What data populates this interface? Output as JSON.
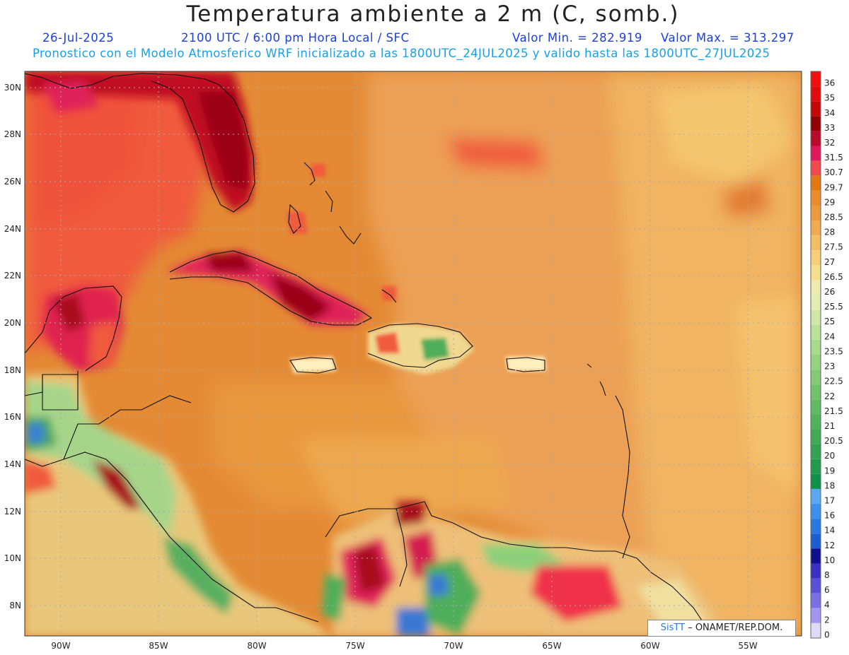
{
  "header": {
    "title": "Temperatura ambiente a 2 m (C, somb.)",
    "date": "26-Jul-2025",
    "time": "2100 UTC / 6:00 pm Hora Local / SFC",
    "min_value": "Valor Min. = 282.919",
    "max_value": "Valor Max. = 313.297",
    "forecast_note": "Pronostico con el Modelo Atmosferico WRF inicializado a las 1800UTC_24JUL2025 y valido hasta las  1800UTC_27JUL2025"
  },
  "map": {
    "lat_labels": [
      "30N",
      "28N",
      "26N",
      "24N",
      "22N",
      "20N",
      "18N",
      "16N",
      "14N",
      "12N",
      "10N",
      "8N"
    ],
    "lon_labels": [
      "90W",
      "85W",
      "80W",
      "75W",
      "70W",
      "65W",
      "60W",
      "55W"
    ],
    "colors": {
      "ocean_warm": "#e08a2c",
      "ocean_hot": "#f05a3a",
      "ocean_mild": "#eca455",
      "very_hot": "#a8101c",
      "cool_green": "#4fae5a",
      "cold_blue": "#3b7fd8"
    }
  },
  "colorbar": {
    "levels": [
      "36",
      "35",
      "34",
      "33",
      "32",
      "31.5",
      "30.7",
      "29.7",
      "29",
      "28.5",
      "28",
      "27.5",
      "27",
      "26.5",
      "26",
      "25.5",
      "25",
      "24",
      "23.5",
      "23",
      "22.5",
      "22",
      "21.5",
      "21",
      "20.5",
      "20",
      "19",
      "18",
      "17",
      "16",
      "14",
      "12",
      "10",
      "8",
      "6",
      "4",
      "2",
      "0"
    ],
    "colors": [
      "#f01010",
      "#e00c0c",
      "#c40808",
      "#900000",
      "#b80c2c",
      "#e01860",
      "#f04a4a",
      "#e27812",
      "#e98c2a",
      "#ec9a40",
      "#f0aa52",
      "#f4be64",
      "#f6d078",
      "#f4e08c",
      "#eeeab0",
      "#e2eeb6",
      "#cfe8a8",
      "#bce29a",
      "#a8da8c",
      "#96d280",
      "#84ca76",
      "#72c26c",
      "#62ba64",
      "#52b25c",
      "#42aa56",
      "#32a252",
      "#229a4e",
      "#10904a",
      "#5aa8f0",
      "#3a90ea",
      "#2878de",
      "#1a5ed0",
      "#10108c",
      "#3c30c0",
      "#5a50d4",
      "#7a70e2",
      "#a298ee",
      "#dcdcf8"
    ]
  },
  "credit": {
    "brand": "SisTT",
    "org": " – ONAMET/REP.DOM."
  }
}
